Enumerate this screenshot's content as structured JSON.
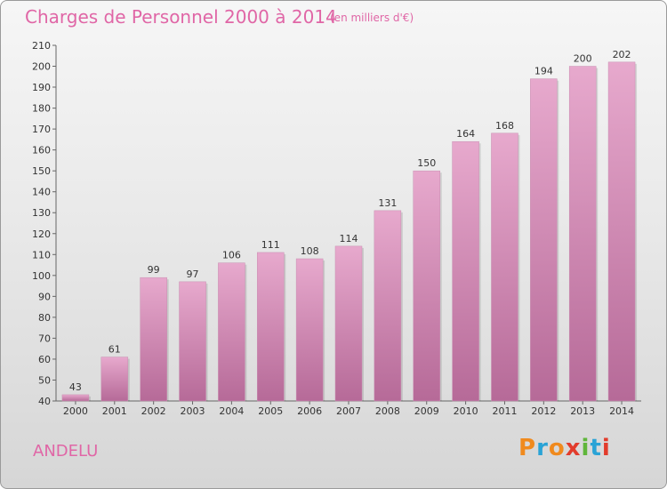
{
  "header": {
    "title": "Charges de Personnel 2000 à 2014",
    "subtitle": "(en milliers d'€)"
  },
  "footer": {
    "commune": "ANDELU",
    "logo_text": "Proxiti"
  },
  "colors": {
    "title": "#e066a6",
    "bar_top": "#e7a9cd",
    "bar_bottom": "#b66a98",
    "logo": [
      "#f08a1e",
      "#2aa3d6",
      "#f08a1e",
      "#e23c2c",
      "#5fb63a",
      "#2aa3d6",
      "#e23c2c"
    ]
  },
  "chart_data": {
    "type": "bar",
    "categories": [
      "2000",
      "2001",
      "2002",
      "2003",
      "2004",
      "2005",
      "2006",
      "2007",
      "2008",
      "2009",
      "2010",
      "2011",
      "2012",
      "2013",
      "2014"
    ],
    "values": [
      43,
      61,
      99,
      97,
      106,
      111,
      108,
      114,
      131,
      150,
      164,
      168,
      194,
      200,
      202
    ],
    "ylim": [
      40,
      210
    ],
    "yticks": [
      40,
      50,
      60,
      70,
      80,
      90,
      100,
      110,
      120,
      130,
      140,
      150,
      160,
      170,
      180,
      190,
      200,
      210
    ],
    "grid": false,
    "data_labels": true
  }
}
